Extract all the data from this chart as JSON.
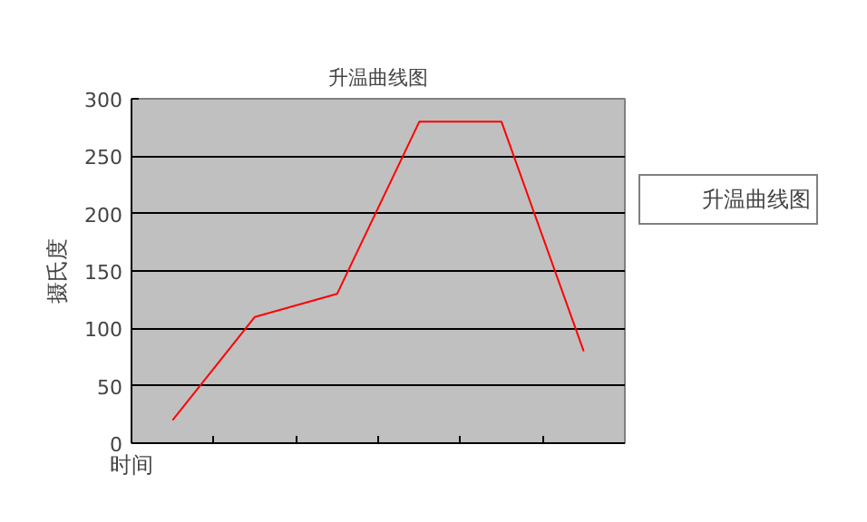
{
  "chart_data": {
    "type": "line",
    "title": "升温曲线图",
    "xlabel": "时间",
    "ylabel": "摄氏度",
    "categories": [
      null,
      null,
      null,
      null,
      null,
      null
    ],
    "series": [
      {
        "name": "升温曲线图",
        "color": "#ff0000",
        "values": [
          20,
          110,
          130,
          280,
          280,
          80
        ]
      }
    ],
    "ylim": [
      0,
      300
    ],
    "yticks": [
      0,
      50,
      100,
      150,
      200,
      250,
      300
    ],
    "grid": "y",
    "legend": "right",
    "tick_labels": "y",
    "marker": "none"
  }
}
